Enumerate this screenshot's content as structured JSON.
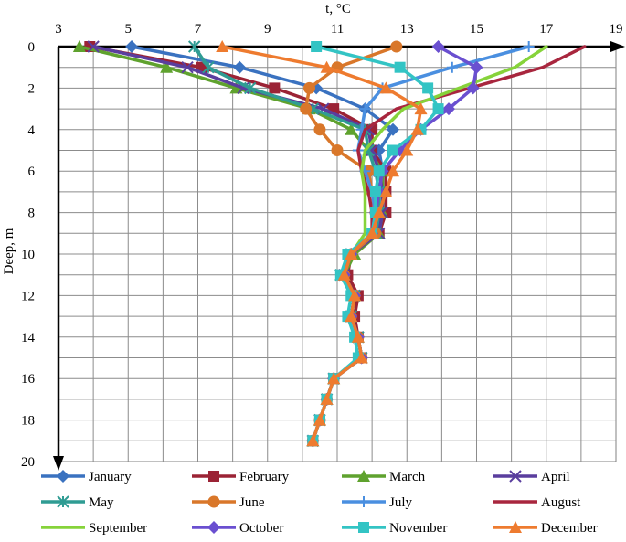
{
  "chart_data": {
    "type": "line",
    "orientation": "depth-profile",
    "xlabel": "t, °C",
    "ylabel": "Deep, m",
    "xlim": [
      3,
      19
    ],
    "ylim": [
      0,
      20
    ],
    "x_ticks": [
      3,
      5,
      7,
      9,
      11,
      13,
      15,
      17,
      19
    ],
    "y_ticks": [
      0,
      2,
      4,
      6,
      8,
      10,
      12,
      14,
      16,
      18,
      20
    ],
    "x_axis_position": "top",
    "y_axis_direction": "down",
    "grid": true,
    "legend_position": "bottom",
    "depths": [
      0,
      1,
      2,
      3,
      4,
      5,
      6,
      7,
      8,
      9,
      10,
      11,
      12,
      13,
      14,
      15,
      16,
      17,
      18,
      19
    ],
    "series": [
      {
        "name": "January",
        "color": "#3a72c0",
        "marker": "diamond",
        "values": [
          5.1,
          8.2,
          10.4,
          11.8,
          12.6,
          12.2,
          12.3,
          12.3,
          12.3,
          12.1,
          11.4,
          11.2,
          11.5,
          11.4,
          11.6,
          11.7,
          10.9,
          10.7,
          10.5,
          10.3
        ]
      },
      {
        "name": "February",
        "color": "#9b2335",
        "marker": "square",
        "values": [
          3.9,
          7.1,
          9.2,
          10.9,
          12.0,
          12.0,
          12.4,
          12.4,
          12.4,
          12.2,
          11.4,
          11.3,
          11.6,
          11.5,
          11.6,
          11.7,
          10.9,
          10.7,
          10.5,
          10.3
        ]
      },
      {
        "name": "March",
        "color": "#5fa22e",
        "marker": "triangle",
        "values": [
          3.6,
          6.1,
          8.1,
          10.2,
          11.4,
          11.9,
          12.3,
          12.3,
          12.3,
          12.2,
          11.5,
          11.2,
          11.5,
          11.4,
          11.6,
          11.7,
          10.9,
          10.7,
          10.5,
          10.3
        ]
      },
      {
        "name": "April",
        "color": "#5a3e9e",
        "marker": "x",
        "values": [
          4.0,
          6.7,
          8.3,
          10.6,
          11.9,
          12.0,
          12.2,
          12.3,
          12.3,
          12.2,
          11.4,
          11.2,
          11.5,
          11.4,
          11.6,
          11.7,
          10.9,
          10.7,
          10.5,
          10.3
        ]
      },
      {
        "name": "May",
        "color": "#2f9c93",
        "marker": "asterisk",
        "values": [
          6.9,
          7.3,
          8.5,
          10.3,
          11.8,
          11.9,
          12.1,
          12.2,
          12.2,
          12.1,
          11.4,
          11.1,
          11.5,
          11.4,
          11.6,
          11.7,
          10.9,
          10.7,
          10.5,
          10.3
        ]
      },
      {
        "name": "June",
        "color": "#d9772a",
        "marker": "circle",
        "values": [
          12.7,
          11.0,
          10.2,
          10.1,
          10.5,
          11.0,
          11.9,
          12.0,
          12.1,
          12.1,
          11.4,
          11.2,
          11.5,
          11.4,
          11.6,
          11.7,
          10.9,
          10.7,
          10.5,
          10.3
        ]
      },
      {
        "name": "July",
        "color": "#4a8fe0",
        "marker": "plus",
        "values": [
          16.5,
          14.3,
          12.3,
          11.8,
          11.7,
          11.6,
          11.8,
          12.0,
          12.1,
          12.0,
          11.4,
          11.2,
          11.5,
          11.4,
          11.6,
          11.7,
          10.9,
          10.7,
          10.5,
          10.3
        ]
      },
      {
        "name": "August",
        "color": "#a8263e",
        "marker": "none",
        "values": [
          18.1,
          16.9,
          14.8,
          12.7,
          11.8,
          11.6,
          11.7,
          11.9,
          12.0,
          12.0,
          11.4,
          11.2,
          11.5,
          11.4,
          11.6,
          11.7,
          10.9,
          10.7,
          10.5,
          10.3
        ]
      },
      {
        "name": "September",
        "color": "#86d33a",
        "marker": "none",
        "values": [
          17.0,
          16.1,
          14.5,
          12.9,
          12.3,
          11.8,
          11.7,
          11.8,
          11.8,
          11.8,
          11.4,
          11.2,
          11.5,
          11.4,
          11.6,
          11.7,
          10.9,
          10.7,
          10.5,
          10.3
        ]
      },
      {
        "name": "October",
        "color": "#6a4fd0",
        "marker": "diamond",
        "values": [
          13.9,
          15.0,
          14.9,
          14.2,
          13.4,
          12.8,
          12.3,
          12.2,
          12.1,
          12.0,
          11.4,
          11.2,
          11.5,
          11.4,
          11.6,
          11.7,
          10.9,
          10.7,
          10.5,
          10.3
        ]
      },
      {
        "name": "November",
        "color": "#33c4c4",
        "marker": "square",
        "values": [
          10.4,
          12.8,
          13.6,
          13.9,
          13.4,
          12.6,
          12.2,
          12.1,
          12.1,
          12.0,
          11.3,
          11.1,
          11.4,
          11.3,
          11.5,
          11.6,
          10.9,
          10.7,
          10.5,
          10.3
        ]
      },
      {
        "name": "December",
        "color": "#ee7b2f",
        "marker": "triangle",
        "values": [
          7.7,
          10.7,
          12.4,
          13.4,
          13.3,
          13.0,
          12.6,
          12.4,
          12.2,
          12.0,
          11.4,
          11.2,
          11.5,
          11.4,
          11.6,
          11.7,
          10.9,
          10.7,
          10.5,
          10.3
        ]
      }
    ]
  }
}
